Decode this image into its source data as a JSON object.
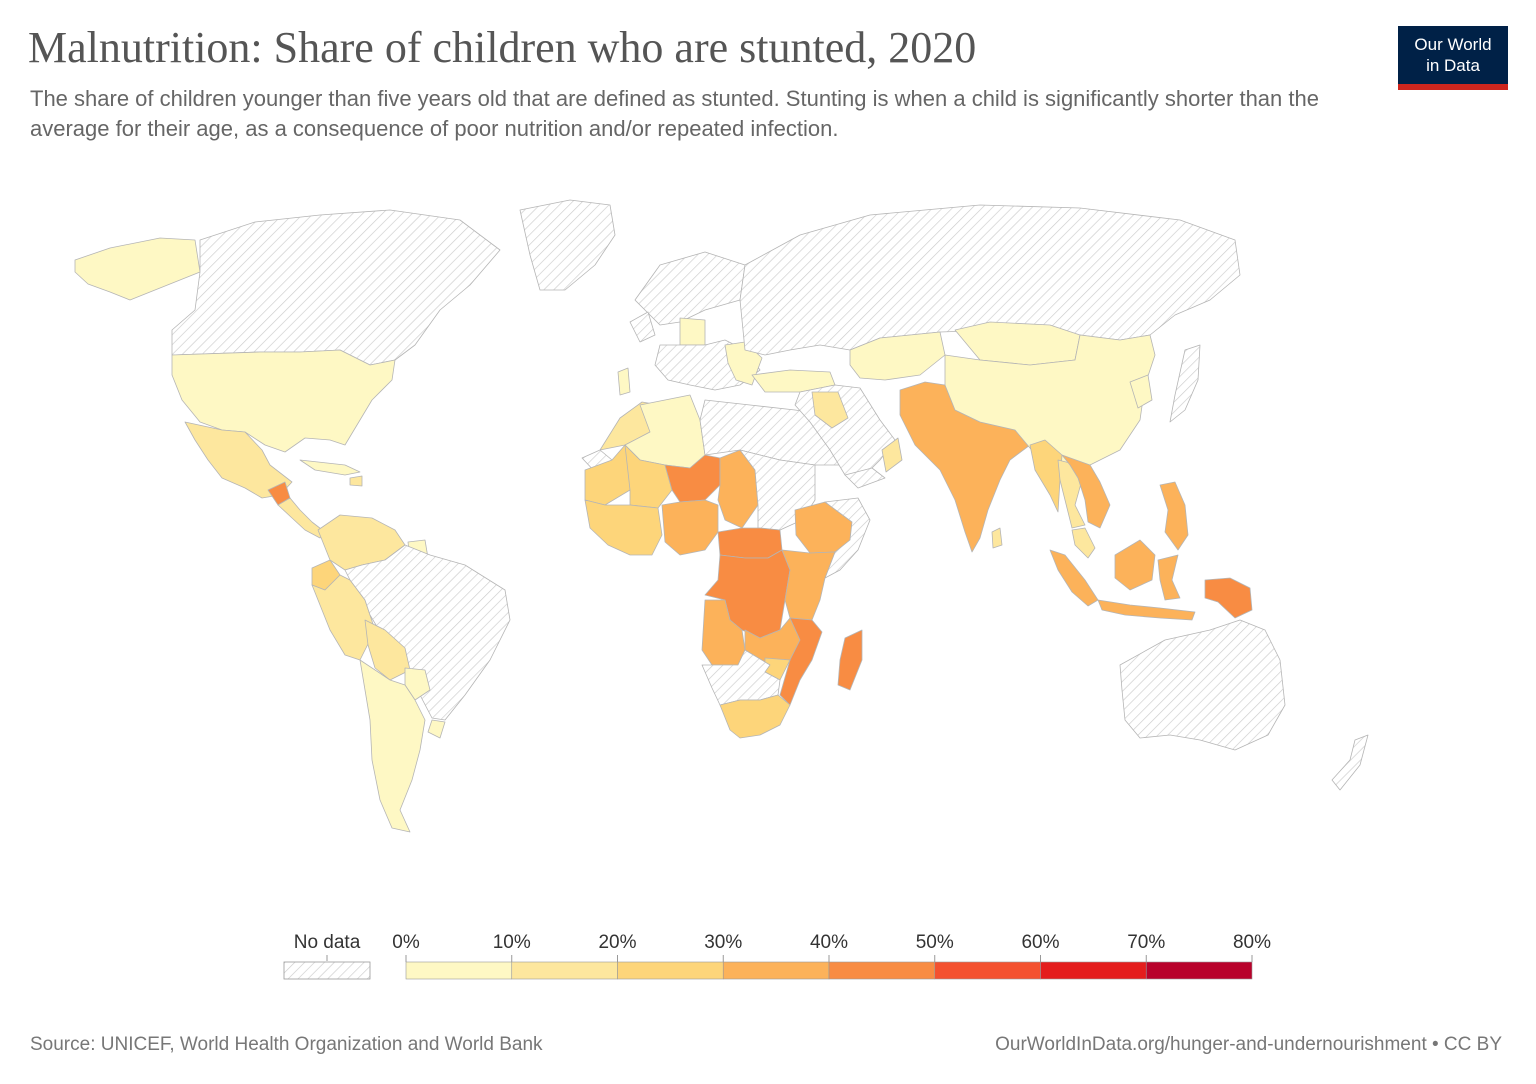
{
  "title": "Malnutrition: Share of children who are stunted, 2020",
  "subtitle": "The share of children younger than five years old that are defined as stunted. Stunting is when a child is significantly shorter than the average for their age, as a consequence of poor nutrition and/or repeated infection.",
  "logo": {
    "line1": "Our World",
    "line2": "in Data",
    "bg_color": "#002147",
    "accent_color": "#ce261e"
  },
  "legend": {
    "no_data_label": "No data",
    "ticks": [
      "0%",
      "10%",
      "20%",
      "30%",
      "40%",
      "50%",
      "60%",
      "70%",
      "80%"
    ],
    "colors": [
      "#fef8c4",
      "#fde79e",
      "#fdd57a",
      "#fcb25a",
      "#f88c43",
      "#f4512f",
      "#e41d1d",
      "#b8022b"
    ]
  },
  "colors": {
    "no_data_fill": "#ffffff",
    "no_data_hatch": "#cccccc",
    "border": "#b5b5b5"
  },
  "source": "Source: UNICEF, World Health Organization and World Bank",
  "url": "OurWorldInData.org/hunger-and-undernourishment • CC BY",
  "map_regions": [
    {
      "id": "alaska",
      "name": "Alaska",
      "bucket": 0
    },
    {
      "id": "canada",
      "name": "Canada",
      "bucket": -1
    },
    {
      "id": "greenland",
      "name": "Greenland",
      "bucket": -1
    },
    {
      "id": "usa",
      "name": "United States",
      "bucket": 0
    },
    {
      "id": "mexico",
      "name": "Mexico",
      "bucket": 1
    },
    {
      "id": "guatemala",
      "name": "Guatemala",
      "bucket": 4
    },
    {
      "id": "central-america",
      "name": "Central America",
      "bucket": 1
    },
    {
      "id": "caribbean",
      "name": "Caribbean",
      "bucket": 0
    },
    {
      "id": "haiti",
      "name": "Haiti",
      "bucket": 1
    },
    {
      "id": "colombia-venezuela",
      "name": "Colombia & Venezuela",
      "bucket": 1
    },
    {
      "id": "ecuador",
      "name": "Ecuador",
      "bucket": 2
    },
    {
      "id": "peru",
      "name": "Peru",
      "bucket": 1
    },
    {
      "id": "guyana",
      "name": "Guyana",
      "bucket": 0
    },
    {
      "id": "brazil",
      "name": "Brazil",
      "bucket": -1
    },
    {
      "id": "bolivia",
      "name": "Bolivia",
      "bucket": 1
    },
    {
      "id": "paraguay",
      "name": "Paraguay",
      "bucket": 0
    },
    {
      "id": "southern-cone",
      "name": "Chile & Argentina",
      "bucket": 0
    },
    {
      "id": "uruguay",
      "name": "Uruguay",
      "bucket": 0
    },
    {
      "id": "northern-europe",
      "name": "Northern Europe",
      "bucket": -1
    },
    {
      "id": "uk",
      "name": "United Kingdom",
      "bucket": -1
    },
    {
      "id": "germany",
      "name": "Germany",
      "bucket": 0
    },
    {
      "id": "europe",
      "name": "Europe",
      "bucket": -1
    },
    {
      "id": "portugal",
      "name": "Portugal",
      "bucket": 0
    },
    {
      "id": "balkans",
      "name": "Balkans",
      "bucket": 0
    },
    {
      "id": "russia",
      "name": "Russia",
      "bucket": -1
    },
    {
      "id": "turkey",
      "name": "Turkey",
      "bucket": 0
    },
    {
      "id": "morocco",
      "name": "Morocco",
      "bucket": 1
    },
    {
      "id": "algeria",
      "name": "Algeria",
      "bucket": 0
    },
    {
      "id": "libya-egypt",
      "name": "Libya & Egypt",
      "bucket": -1
    },
    {
      "id": "western-sahara",
      "name": "Western Sahara",
      "bucket": -1
    },
    {
      "id": "mauritania",
      "name": "Mauritania",
      "bucket": 2
    },
    {
      "id": "mali",
      "name": "Mali",
      "bucket": 2
    },
    {
      "id": "niger",
      "name": "Niger",
      "bucket": 4
    },
    {
      "id": "chad",
      "name": "Chad",
      "bucket": 3
    },
    {
      "id": "sudan",
      "name": "Sudan",
      "bucket": -1
    },
    {
      "id": "west-africa",
      "name": "West Africa",
      "bucket": 2
    },
    {
      "id": "nigeria",
      "name": "Nigeria",
      "bucket": 3
    },
    {
      "id": "car",
      "name": "Central African Republic",
      "bucket": 4
    },
    {
      "id": "ethiopia",
      "name": "Ethiopia",
      "bucket": 3
    },
    {
      "id": "horn",
      "name": "Horn of Africa",
      "bucket": -1
    },
    {
      "id": "drc",
      "name": "DR Congo",
      "bucket": 4
    },
    {
      "id": "east-africa",
      "name": "East Africa",
      "bucket": 3
    },
    {
      "id": "angola",
      "name": "Angola",
      "bucket": 3
    },
    {
      "id": "zambia",
      "name": "Zambia",
      "bucket": 3
    },
    {
      "id": "mozambique",
      "name": "Mozambique",
      "bucket": 4
    },
    {
      "id": "zimbabwe",
      "name": "Zimbabwe",
      "bucket": 2
    },
    {
      "id": "namibia-botswana",
      "name": "Namibia & Botswana",
      "bucket": -1
    },
    {
      "id": "south-africa",
      "name": "South Africa",
      "bucket": 2
    },
    {
      "id": "madagascar",
      "name": "Madagascar",
      "bucket": 4
    },
    {
      "id": "middle-east",
      "name": "Middle East",
      "bucket": -1
    },
    {
      "id": "iraq",
      "name": "Iraq",
      "bucket": 1
    },
    {
      "id": "yemen",
      "name": "Yemen",
      "bucket": -1
    },
    {
      "id": "oman",
      "name": "Oman",
      "bucket": 1
    },
    {
      "id": "central-asia",
      "name": "Central Asia",
      "bucket": 0
    },
    {
      "id": "south-asia",
      "name": "Afghanistan, Pakistan & India",
      "bucket": 3
    },
    {
      "id": "sri-lanka",
      "name": "Sri Lanka",
      "bucket": 1
    },
    {
      "id": "mongolia",
      "name": "Mongolia",
      "bucket": 0
    },
    {
      "id": "china",
      "name": "China",
      "bucket": 0
    },
    {
      "id": "korea",
      "name": "Korea",
      "bucket": 0
    },
    {
      "id": "japan",
      "name": "Japan",
      "bucket": -1
    },
    {
      "id": "myanmar",
      "name": "Myanmar",
      "bucket": 2
    },
    {
      "id": "thailand",
      "name": "Thailand",
      "bucket": 1
    },
    {
      "id": "indochina",
      "name": "Laos, Cambodia & Vietnam",
      "bucket": 3
    },
    {
      "id": "malaysia",
      "name": "Malaysia",
      "bucket": 1
    },
    {
      "id": "philippines",
      "name": "Philippines",
      "bucket": 3
    },
    {
      "id": "sumatra",
      "name": "Sumatra",
      "bucket": 3
    },
    {
      "id": "borneo",
      "name": "Borneo",
      "bucket": 3
    },
    {
      "id": "sulawesi",
      "name": "Sulawesi",
      "bucket": 3
    },
    {
      "id": "java",
      "name": "Java",
      "bucket": 3
    },
    {
      "id": "papua",
      "name": "Papua New Guinea",
      "bucket": 4
    },
    {
      "id": "australia",
      "name": "Australia",
      "bucket": -1
    },
    {
      "id": "new-zealand",
      "name": "New Zealand",
      "bucket": -1
    }
  ]
}
